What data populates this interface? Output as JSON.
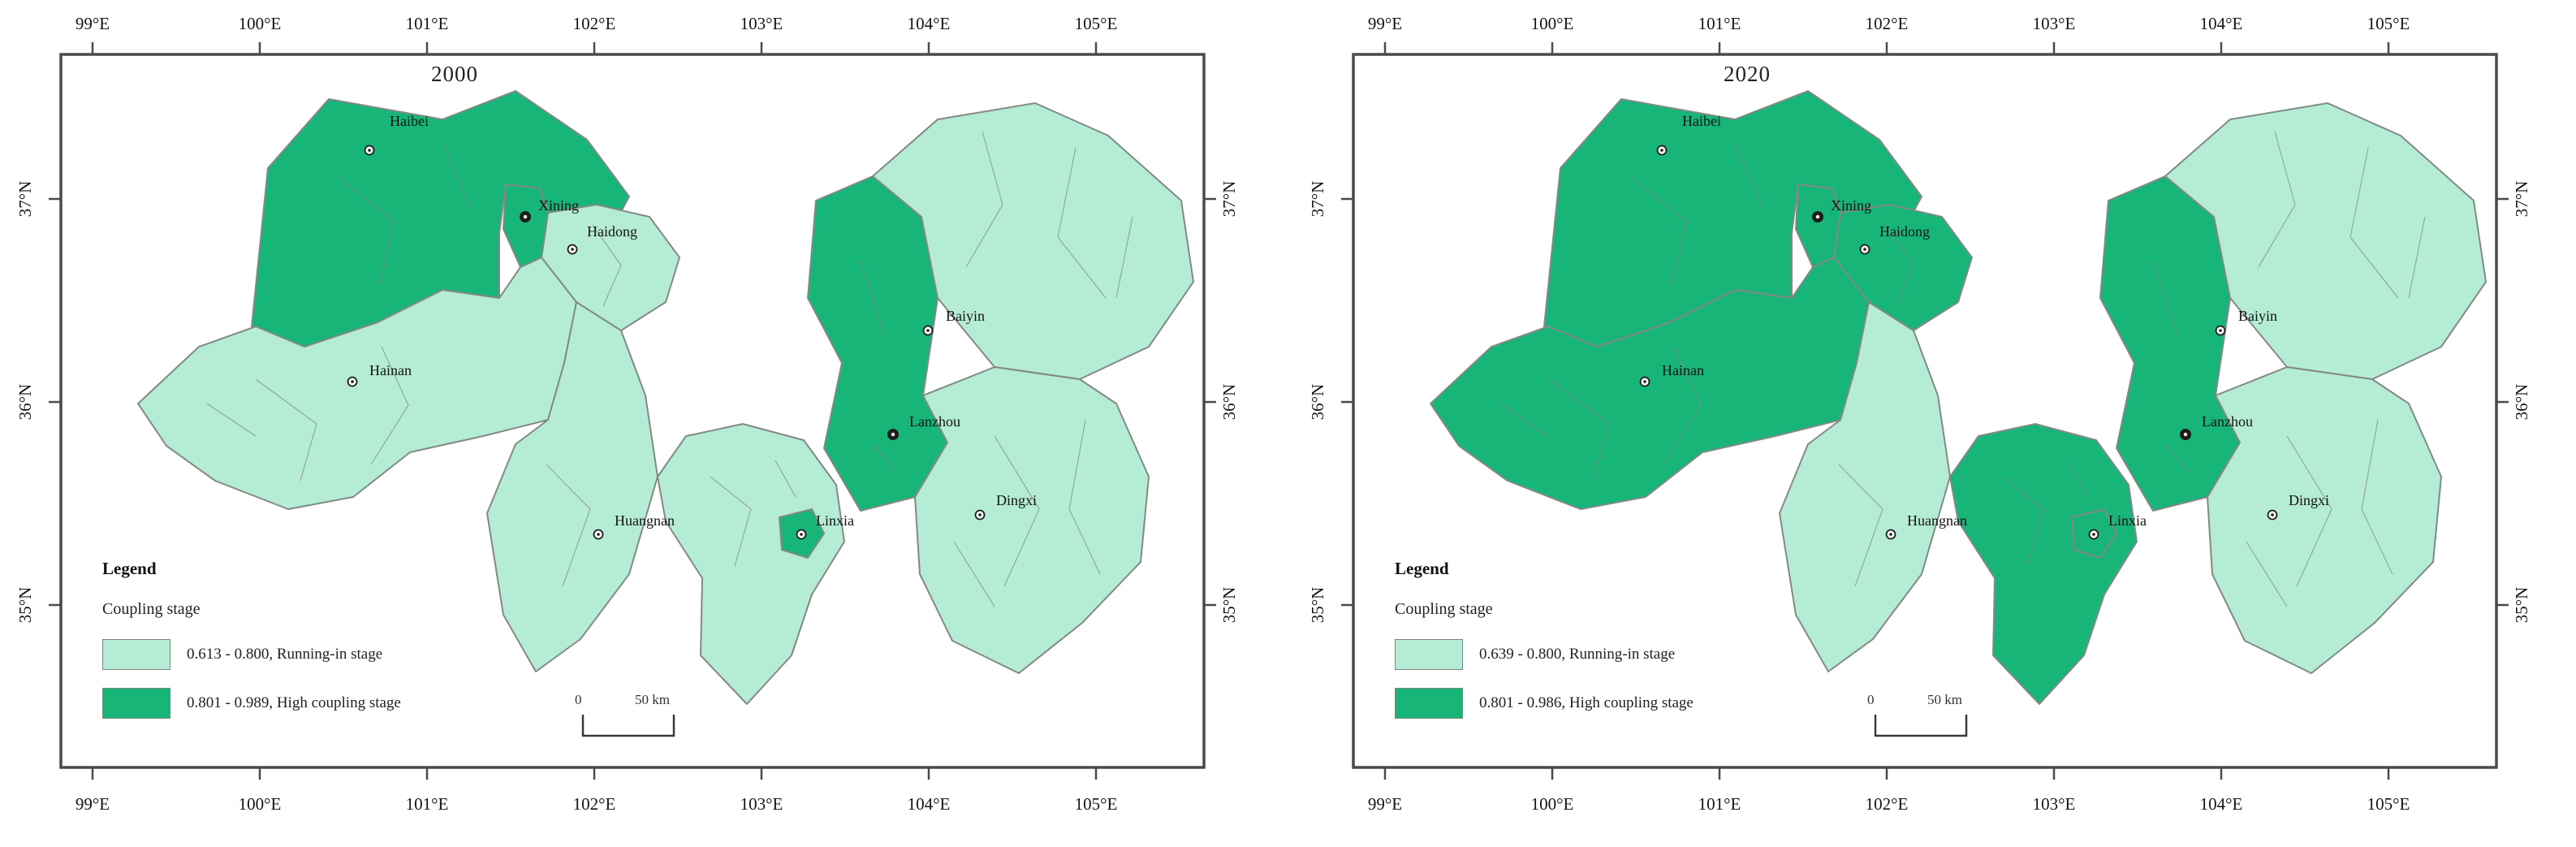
{
  "panels": [
    {
      "title": "2000",
      "legend": {
        "title": "Legend",
        "subtitle": "Coupling stage",
        "items": [
          {
            "text": "0.613 - 0.800, Running-in stage",
            "color": "#b5ecd6",
            "stage": "running"
          },
          {
            "text": "0.801 - 0.989, High coupling stage",
            "color": "#17b578",
            "stage": "high"
          }
        ]
      },
      "scalebar": {
        "start": "0",
        "end": "50 km"
      },
      "stages": {
        "Haibei": "high",
        "Xining": "high",
        "Haidong": "running",
        "Hainan": "running",
        "Huangnan": "running",
        "Lanzhou": "high",
        "Baiyin": "running",
        "Linxia": "running",
        "LinxiaCity": "high",
        "Dingxi": "running"
      }
    },
    {
      "title": "2020",
      "legend": {
        "title": "Legend",
        "subtitle": "Coupling stage",
        "items": [
          {
            "text": "0.639 - 0.800, Running-in stage",
            "color": "#b5ecd6",
            "stage": "running"
          },
          {
            "text": "0.801 - 0.986, High coupling stage",
            "color": "#17b578",
            "stage": "high"
          }
        ]
      },
      "scalebar": {
        "start": "0",
        "end": "50 km"
      },
      "stages": {
        "Haibei": "high",
        "Xining": "high",
        "Haidong": "high",
        "Hainan": "high",
        "Huangnan": "running",
        "Lanzhou": "high",
        "Baiyin": "running",
        "Linxia": "high",
        "LinxiaCity": "high",
        "Dingxi": "running"
      }
    }
  ],
  "axis": {
    "lon": [
      "99°E",
      "100°E",
      "101°E",
      "102°E",
      "103°E",
      "104°E",
      "105°E"
    ],
    "lat": [
      "37°N",
      "36°N",
      "35°N"
    ]
  },
  "cities": [
    "Haibei",
    "Xining",
    "Haidong",
    "Hainan",
    "Baiyin",
    "Lanzhou",
    "Linxia",
    "Huangnan",
    "Dingxi"
  ],
  "colors": {
    "running": "#b5ecd6",
    "high": "#17b578",
    "border": "#828a86",
    "frame": "#4a4a4a",
    "text": "#141414"
  }
}
